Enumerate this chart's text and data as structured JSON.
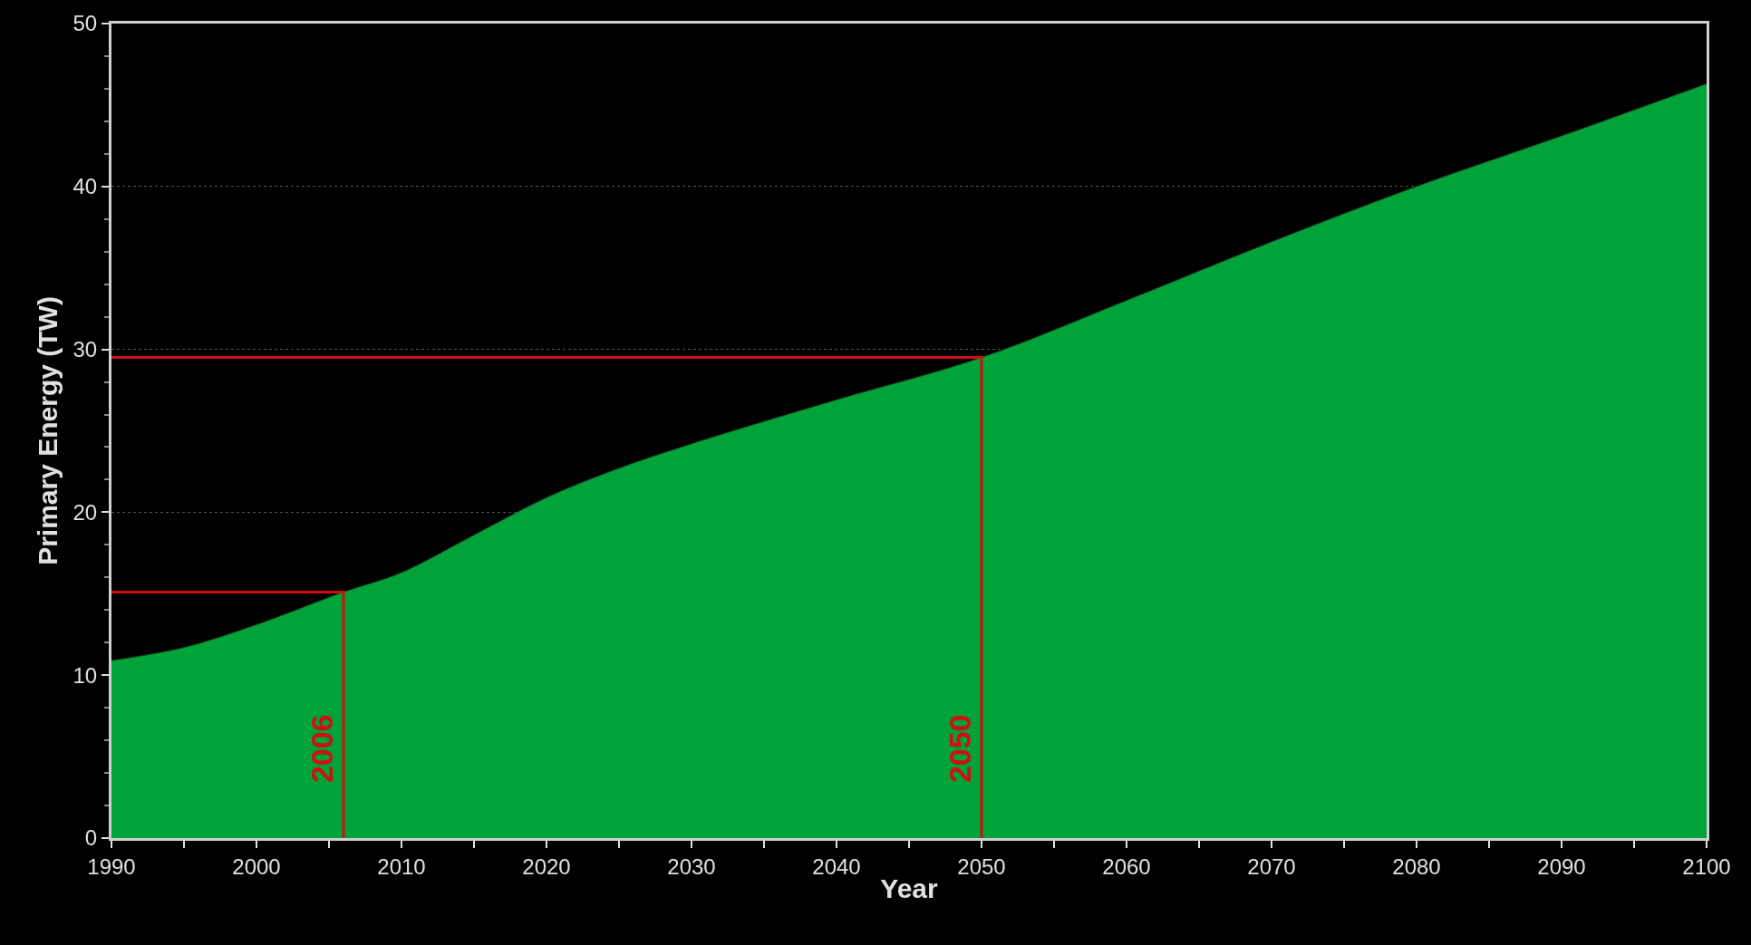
{
  "chart_data": {
    "type": "area",
    "xlabel": "Year",
    "ylabel": "Primary Energy (TW)",
    "x": [
      1990,
      1995,
      2000,
      2006,
      2010,
      2015,
      2020,
      2025,
      2030,
      2040,
      2050,
      2060,
      2070,
      2080,
      2090,
      2100
    ],
    "series": [
      {
        "color": "#00a23a",
        "values": [
          10.9,
          11.7,
          13.1,
          15.1,
          16.3,
          18.6,
          20.9,
          22.7,
          24.2,
          26.9,
          29.5,
          33.0,
          36.6,
          40.0,
          43.1,
          46.3
        ]
      },
      {
        "type": "line",
        "color": "#d01010",
        "x": [
          1990,
          2006,
          2006
        ],
        "values": [
          15.1,
          15.1,
          0
        ]
      },
      {
        "type": "line",
        "color": "#d01010",
        "x": [
          1990,
          2050,
          2050
        ],
        "values": [
          29.5,
          29.5,
          0
        ]
      }
    ],
    "xlim": [
      1990,
      2100
    ],
    "xticks": [
      1990,
      2000,
      2010,
      2020,
      2030,
      2040,
      2050,
      2060,
      2070,
      2080,
      2090,
      2100
    ],
    "ylim": [
      0,
      50
    ],
    "yticks": [
      0,
      10,
      20,
      30,
      40,
      50
    ],
    "grid": "y",
    "annotations": [
      "2006",
      "2050"
    ]
  }
}
